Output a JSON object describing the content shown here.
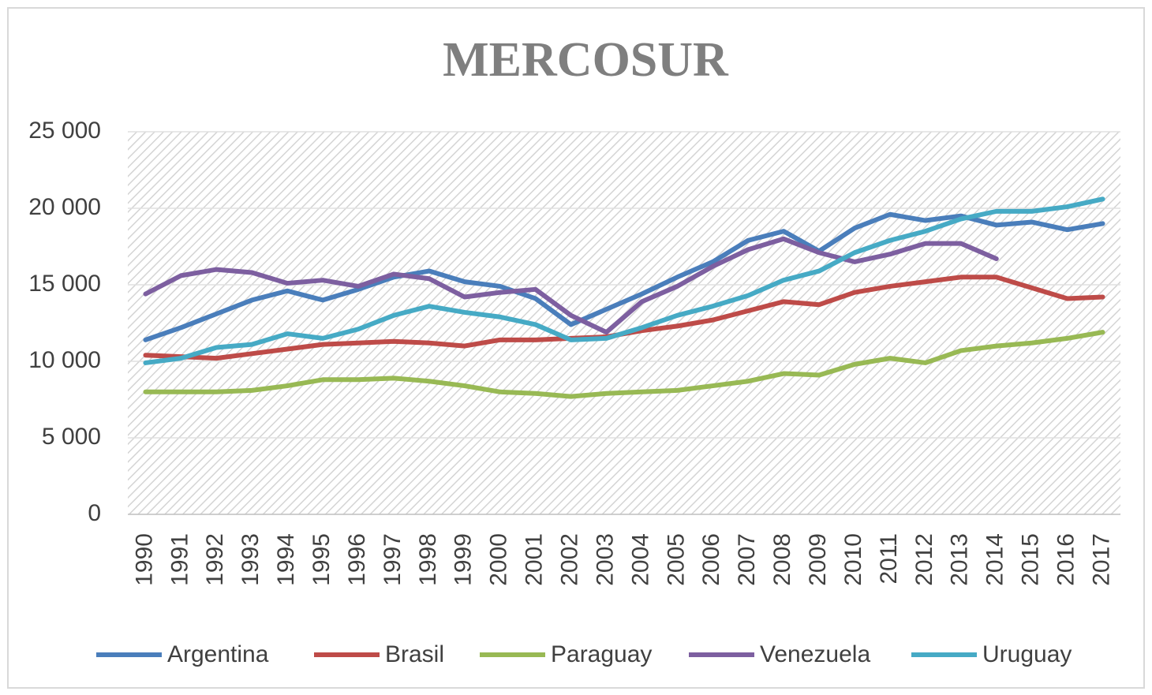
{
  "chart_data": {
    "type": "line",
    "title": "MERCOSUR",
    "categories": [
      "1990",
      "1991",
      "1992",
      "1993",
      "1994",
      "1995",
      "1996",
      "1997",
      "1998",
      "1999",
      "2000",
      "2001",
      "2002",
      "2003",
      "2004",
      "2005",
      "2006",
      "2007",
      "2008",
      "2009",
      "2010",
      "2011",
      "2012",
      "2013",
      "2014",
      "2015",
      "2016",
      "2017"
    ],
    "series": [
      {
        "name": "Argentina",
        "color": "#4a7ebb",
        "values": [
          11400,
          12200,
          13100,
          14000,
          14600,
          14000,
          14700,
          15500,
          15900,
          15200,
          14900,
          14100,
          12400,
          13400,
          14400,
          15500,
          16500,
          17900,
          18500,
          17200,
          18700,
          19600,
          19200,
          19500,
          18900,
          19100,
          18600,
          19000
        ]
      },
      {
        "name": "Brasil",
        "color": "#be4b48",
        "values": [
          10400,
          10300,
          10200,
          10500,
          10800,
          11100,
          11200,
          11300,
          11200,
          11000,
          11400,
          11400,
          11500,
          11600,
          12000,
          12300,
          12700,
          13300,
          13900,
          13700,
          14500,
          14900,
          15200,
          15500,
          15500,
          14800,
          14100,
          14200
        ]
      },
      {
        "name": "Paraguay",
        "color": "#98b954",
        "values": [
          8000,
          8000,
          8000,
          8100,
          8400,
          8800,
          8800,
          8900,
          8700,
          8400,
          8000,
          7900,
          7700,
          7900,
          8000,
          8100,
          8400,
          8700,
          9200,
          9100,
          9800,
          10200,
          9900,
          10700,
          11000,
          11200,
          11500,
          11900
        ]
      },
      {
        "name": "Venezuela",
        "color": "#7d5fa0",
        "values": [
          14400,
          15600,
          16000,
          15800,
          15100,
          15300,
          14900,
          15700,
          15400,
          14200,
          14500,
          14700,
          13000,
          11900,
          13900,
          14900,
          16200,
          17300,
          18000,
          17100,
          16500,
          17000,
          17700,
          17700,
          16700,
          null,
          null,
          null
        ]
      },
      {
        "name": "Uruguay",
        "color": "#46aac5",
        "values": [
          9900,
          10200,
          10900,
          11100,
          11800,
          11500,
          12100,
          13000,
          13600,
          13200,
          12900,
          12400,
          11400,
          11500,
          12200,
          13000,
          13600,
          14300,
          15300,
          15900,
          17100,
          17900,
          18500,
          19300,
          19800,
          19800,
          20100,
          20600
        ]
      }
    ],
    "ylim": [
      0,
      25000
    ],
    "yticks": [
      {
        "value": 0,
        "label": "0"
      },
      {
        "value": 5000,
        "label": "5 000"
      },
      {
        "value": 10000,
        "label": "10 000"
      },
      {
        "value": 15000,
        "label": "15 000"
      },
      {
        "value": 20000,
        "label": "20 000"
      },
      {
        "value": 25000,
        "label": "25 000"
      }
    ],
    "grid": true,
    "legend": "bottom"
  }
}
